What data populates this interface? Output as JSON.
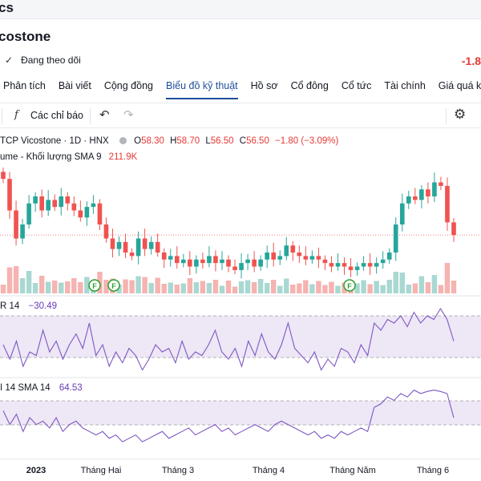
{
  "topbar": {
    "title": "cs"
  },
  "company": {
    "name": "costone",
    "follow_label": "Đang theo dõi",
    "price_change": "-1.8"
  },
  "nav": {
    "tabs": [
      "Phân tích",
      "Bài viết",
      "Cộng đồng",
      "Biểu đồ kỹ thuật",
      "Hồ sơ",
      "Cổ đông",
      "Cổ tức",
      "Tài chính",
      "Giá quá khứ"
    ],
    "active_index": 3
  },
  "toolbar": {
    "indicators_label": "Các chỉ báo",
    "fx_symbol": "f",
    "undo_icon": "undo-icon",
    "redo_icon": "redo-icon",
    "settings_icon": "gear-icon"
  },
  "legend": {
    "symbol": "TCP Vicostone · 1D · HNX",
    "o_label": "O",
    "o": "58.30",
    "h_label": "H",
    "h": "58.70",
    "l_label": "L",
    "l": "56.50",
    "c_label": "C",
    "c": "56.50",
    "change": "−1.80 (−3.09%)",
    "volume_label": "ume - Khối lượng SMA 9",
    "volume_value": "211.9K"
  },
  "indicator1": {
    "label": "R 14",
    "value": "−30.49"
  },
  "indicator2": {
    "label": "I 14 SMA 14",
    "value": "64.53"
  },
  "x_axis": {
    "labels": [
      "2023",
      "Tháng Hai",
      "Tháng 3",
      "Tháng 4",
      "Tháng Năm",
      "Tháng 6"
    ]
  },
  "markers": {
    "label": "F"
  },
  "colors": {
    "up": "#26a69a",
    "down": "#ef5350",
    "up_volume": "#a8d8d1",
    "down_volume": "#f5b3b1",
    "indicator": "#7e57c2",
    "band": "#ede7f6",
    "accent": "#1f4f9a"
  },
  "chart_data": {
    "type": "candlestick",
    "price_series": [
      64.5,
      60,
      56,
      58,
      61,
      62,
      60,
      61.5,
      60.5,
      62,
      61,
      60,
      59,
      60.5,
      61,
      58,
      56,
      54.5,
      55.5,
      54,
      53.5,
      56,
      54.5,
      55.5,
      54,
      53,
      53.5,
      52.5,
      53,
      52,
      53,
      52.5,
      53.5,
      52.5,
      53,
      52,
      51.5,
      52.5,
      53,
      52,
      53,
      54,
      53,
      53.5,
      55,
      54,
      53.5,
      53,
      53.5,
      53,
      52.5,
      52,
      52.5,
      52,
      51.5,
      52,
      52.5,
      52,
      52.5,
      53,
      54,
      58,
      61,
      62,
      61.5,
      63,
      62,
      64,
      63.5,
      58.3,
      56.5
    ],
    "last_close": 56.5,
    "indicator1_series": [
      40,
      20,
      45,
      10,
      30,
      25,
      60,
      30,
      45,
      20,
      40,
      55,
      35,
      70,
      25,
      40,
      10,
      30,
      15,
      35,
      25,
      5,
      20,
      40,
      30,
      35,
      15,
      45,
      20,
      30,
      25,
      40,
      60,
      30,
      20,
      35,
      10,
      45,
      25,
      55,
      30,
      20,
      40,
      70,
      35,
      25,
      15,
      30,
      5,
      20,
      10,
      35,
      30,
      15,
      40,
      25,
      70,
      60,
      75,
      70,
      80,
      65,
      85,
      70,
      80,
      75,
      90,
      75,
      45
    ],
    "indicator2_series": [
      60,
      40,
      55,
      30,
      50,
      40,
      45,
      35,
      50,
      30,
      40,
      45,
      35,
      30,
      25,
      30,
      20,
      25,
      15,
      20,
      25,
      15,
      20,
      25,
      30,
      20,
      25,
      30,
      35,
      25,
      30,
      35,
      40,
      30,
      35,
      25,
      30,
      35,
      40,
      35,
      30,
      40,
      45,
      40,
      35,
      30,
      25,
      30,
      20,
      25,
      20,
      30,
      25,
      30,
      35,
      30,
      65,
      70,
      80,
      75,
      85,
      80,
      90,
      85,
      88,
      90,
      88,
      85,
      50
    ]
  }
}
